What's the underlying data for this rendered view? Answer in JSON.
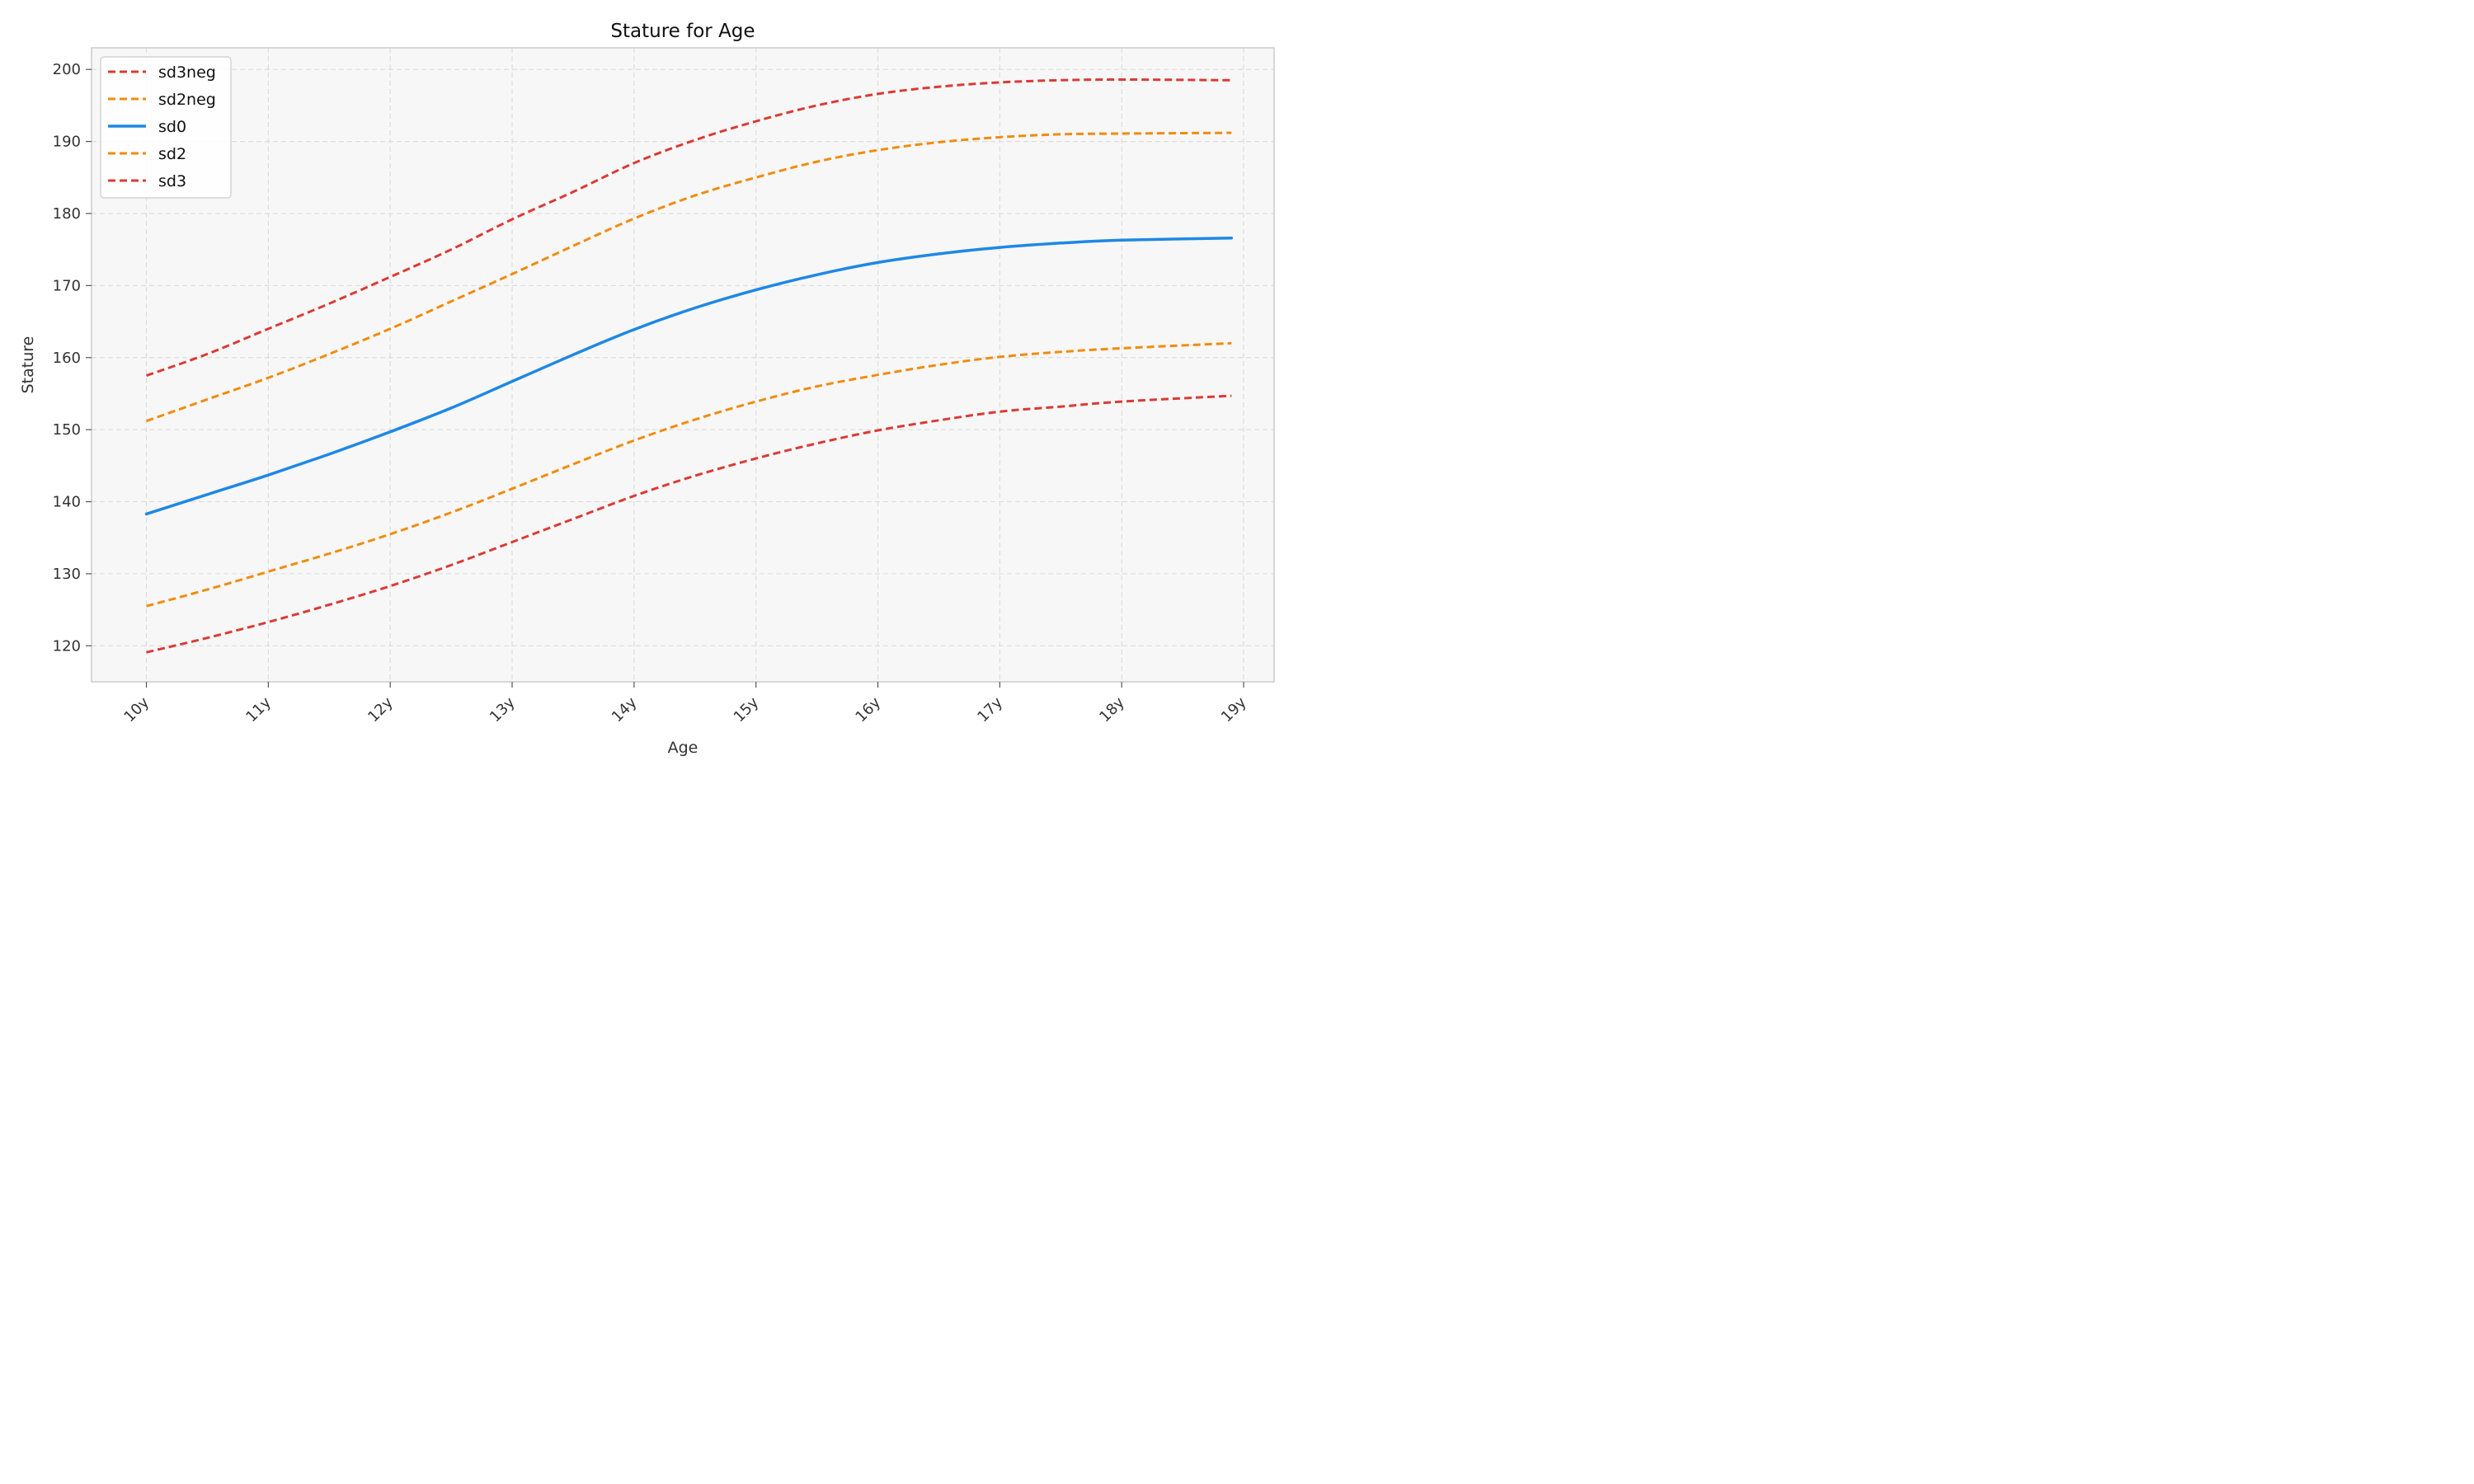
{
  "chart_data": {
    "type": "line",
    "title": "Stature for Age",
    "xlabel": "Age",
    "ylabel": "Stature",
    "x": [
      10,
      10.5,
      11,
      11.5,
      12,
      12.5,
      13,
      13.5,
      14,
      14.5,
      15,
      15.5,
      16,
      16.5,
      17,
      17.5,
      18,
      18.9
    ],
    "xticks": [
      10,
      11,
      12,
      13,
      14,
      15,
      16,
      17,
      18,
      19
    ],
    "xtick_labels": [
      "10y",
      "11y",
      "12y",
      "13y",
      "14y",
      "15y",
      "16y",
      "17y",
      "18y",
      "19y"
    ],
    "xlim": [
      9.55,
      19.25
    ],
    "ylim": [
      115,
      203
    ],
    "yticks": [
      120,
      130,
      140,
      150,
      160,
      170,
      180,
      190,
      200
    ],
    "ytick_labels": [
      "120",
      "130",
      "140",
      "150",
      "160",
      "170",
      "180",
      "190",
      "200"
    ],
    "grid": true,
    "legend_position": "top-left",
    "series": [
      {
        "name": "sd3neg",
        "color": "#dc3a35",
        "dashed": true,
        "values": [
          157.5,
          160.5,
          164.0,
          167.5,
          171.2,
          175.0,
          179.2,
          183.0,
          187.0,
          190.2,
          192.8,
          195.0,
          196.6,
          197.6,
          198.2,
          198.5,
          198.6,
          198.5
        ]
      },
      {
        "name": "sd2neg",
        "color": "#f28b0c",
        "dashed": true,
        "values": [
          151.2,
          154.2,
          157.2,
          160.5,
          164.0,
          167.8,
          171.6,
          175.5,
          179.3,
          182.5,
          185.0,
          187.2,
          188.8,
          189.9,
          190.6,
          191.0,
          191.1,
          191.2
        ]
      },
      {
        "name": "sd0",
        "color": "#1e88e5",
        "dashed": false,
        "values": [
          138.3,
          141.0,
          143.7,
          146.6,
          149.7,
          153.0,
          156.7,
          160.4,
          163.9,
          166.9,
          169.4,
          171.5,
          173.2,
          174.4,
          175.3,
          175.9,
          176.3,
          176.6
        ]
      },
      {
        "name": "sd2",
        "color": "#f28b0c",
        "dashed": true,
        "values": [
          125.5,
          127.8,
          130.3,
          132.8,
          135.5,
          138.5,
          141.8,
          145.2,
          148.5,
          151.4,
          153.9,
          156.0,
          157.6,
          159.0,
          160.1,
          160.8,
          161.3,
          162.0
        ]
      },
      {
        "name": "sd3",
        "color": "#dc3a35",
        "dashed": true,
        "values": [
          119.1,
          121.1,
          123.3,
          125.7,
          128.3,
          131.2,
          134.4,
          137.6,
          140.8,
          143.6,
          146.0,
          148.1,
          149.9,
          151.3,
          152.5,
          153.2,
          153.9,
          154.7
        ]
      }
    ]
  }
}
